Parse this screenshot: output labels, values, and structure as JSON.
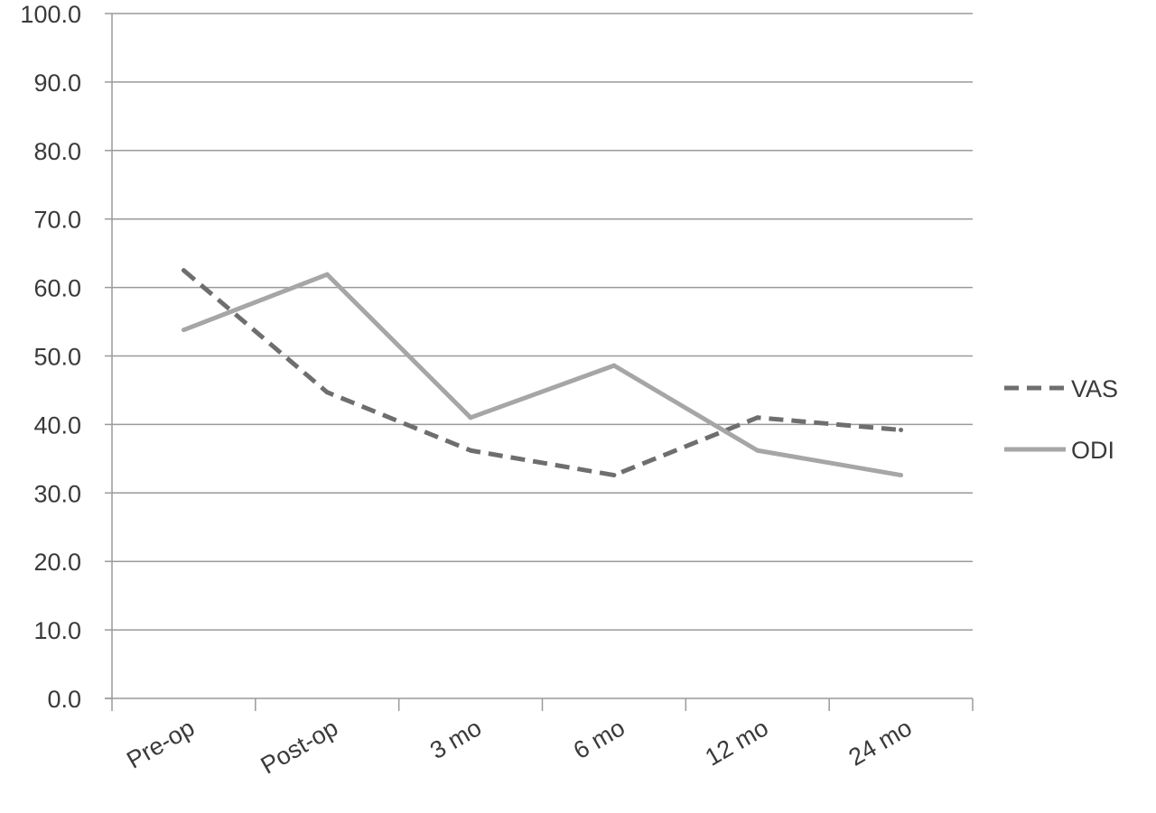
{
  "chart_data": {
    "type": "line",
    "title": "",
    "xlabel": "",
    "ylabel": "",
    "categories": [
      "Pre-op",
      "Post-op",
      "3 mo",
      "6 mo",
      "12 mo",
      "24 mo"
    ],
    "ylim": [
      0,
      100
    ],
    "yticks": [
      "0.0",
      "10.0",
      "20.0",
      "30.0",
      "40.0",
      "50.0",
      "60.0",
      "70.0",
      "80.0",
      "90.0",
      "100.0"
    ],
    "grid": "horizontal",
    "legend_position": "right",
    "series": [
      {
        "name": "VAS",
        "values": [
          62.5,
          44.7,
          36.2,
          32.6,
          41.0,
          39.2
        ],
        "style": "dashed",
        "color": "#6e6e6e"
      },
      {
        "name": "ODI",
        "values": [
          53.8,
          61.9,
          41.0,
          48.6,
          36.2,
          32.6
        ],
        "style": "solid",
        "color": "#a6a6a6"
      }
    ],
    "colors": {
      "grid": "#9a9a9a",
      "axis": "#9a9a9a",
      "text": "#3a3a3a"
    }
  }
}
